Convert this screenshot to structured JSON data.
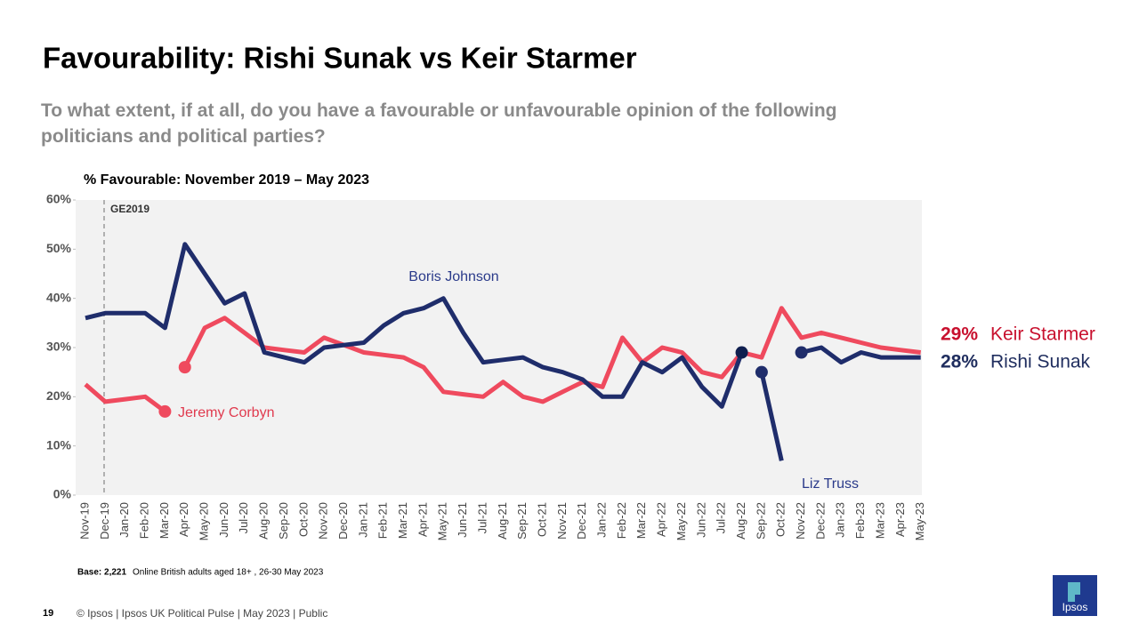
{
  "chart_data": {
    "type": "line",
    "title": "Favourability: Rishi Sunak vs Keir Starmer",
    "subtitle": "To what extent, if at all, do you have a favourable or unfavourable opinion of the following politicians and political parties?",
    "chart_title": "% Favourable: November 2019 – May 2023",
    "annotation": "GE2019",
    "categories": [
      "Nov-19",
      "Dec-19",
      "Jan-20",
      "Feb-20",
      "Mar-20",
      "Apr-20",
      "May-20",
      "Jun-20",
      "Jul-20",
      "Aug-20",
      "Sep-20",
      "Oct-20",
      "Nov-20",
      "Dec-20",
      "Jan-21",
      "Feb-21",
      "Mar-21",
      "Apr-21",
      "May-21",
      "Jun-21",
      "Jul-21",
      "Aug-21",
      "Sep-21",
      "Oct-21",
      "Nov-21",
      "Dec-21",
      "Jan-22",
      "Feb-22",
      "Mar-22",
      "Apr-22",
      "May-22",
      "Jun-22",
      "Jul-22",
      "Aug-22",
      "Sep-22",
      "Oct-22",
      "Nov-22",
      "Dec-22",
      "Jan-23",
      "Feb-23",
      "Mar-23",
      "Apr-23",
      "May-23"
    ],
    "series": [
      {
        "name": "Jeremy Corbyn",
        "color": "#ef4a5e",
        "label_color": "#e03a4e",
        "values": [
          22.5,
          19,
          19.5,
          20,
          17,
          null,
          null,
          null,
          null,
          null,
          null,
          null,
          null,
          null,
          null,
          null,
          null,
          null,
          null,
          null,
          null,
          null,
          null,
          null,
          null,
          null,
          null,
          null,
          null,
          null,
          null,
          null,
          null,
          null,
          null,
          null,
          null,
          null,
          null,
          null,
          null,
          null,
          null
        ]
      },
      {
        "name": "Keir Starmer",
        "color": "#ef4a5e",
        "label_color": "#c8102e",
        "values": [
          null,
          null,
          null,
          null,
          null,
          26,
          34,
          36,
          33,
          30,
          29.5,
          29,
          32,
          30.5,
          29,
          28.5,
          28,
          26,
          21,
          20.5,
          20,
          23,
          20,
          19,
          21,
          23,
          22,
          32,
          27,
          30,
          29,
          25,
          24,
          29,
          28,
          38,
          32,
          33,
          32,
          31,
          30,
          29.5,
          29
        ],
        "value_labels": [
          null,
          null,
          null,
          null,
          null,
          null,
          null,
          null,
          null,
          null,
          null,
          null,
          null,
          null,
          null,
          null,
          null,
          null,
          null,
          null,
          null,
          null,
          null,
          null,
          null,
          null,
          null,
          null,
          null,
          null,
          null,
          null,
          null,
          null,
          null,
          null,
          null,
          null,
          null,
          null,
          null,
          null,
          "29%"
        ]
      },
      {
        "name": "Boris Johnson",
        "color": "#1f2d6b",
        "label_color": "#2a3a8a",
        "values": [
          36,
          37,
          37,
          37,
          34,
          51,
          45,
          39,
          41,
          29,
          28,
          27,
          30,
          30.5,
          31,
          34.5,
          37,
          38,
          40,
          33,
          27,
          27.5,
          28,
          26,
          25,
          23.5,
          20,
          20,
          27,
          25,
          28,
          22,
          18,
          29,
          null,
          null,
          null,
          null,
          null,
          null,
          null,
          null,
          null
        ]
      },
      {
        "name": "Liz Truss",
        "color": "#1f2d6b",
        "label_color": "#2a3a8a",
        "values": [
          null,
          null,
          null,
          null,
          null,
          null,
          null,
          null,
          null,
          null,
          null,
          null,
          null,
          null,
          null,
          null,
          null,
          null,
          null,
          null,
          null,
          null,
          null,
          null,
          null,
          null,
          null,
          null,
          null,
          null,
          null,
          null,
          null,
          null,
          25,
          7,
          null,
          null,
          null,
          null,
          null,
          null,
          null
        ]
      },
      {
        "name": "Rishi Sunak",
        "color": "#1f2d6b",
        "label_color": "#1f2d5e",
        "values": [
          null,
          null,
          null,
          null,
          null,
          null,
          null,
          null,
          null,
          null,
          null,
          null,
          null,
          null,
          null,
          null,
          null,
          null,
          null,
          null,
          null,
          null,
          null,
          null,
          null,
          null,
          null,
          null,
          null,
          null,
          null,
          null,
          null,
          null,
          null,
          null,
          29,
          30,
          27,
          29,
          28,
          28,
          28
        ],
        "value_labels": [
          null,
          null,
          null,
          null,
          null,
          null,
          null,
          null,
          null,
          null,
          null,
          null,
          null,
          null,
          null,
          null,
          null,
          null,
          null,
          null,
          null,
          null,
          null,
          null,
          null,
          null,
          null,
          null,
          null,
          null,
          null,
          null,
          null,
          null,
          null,
          null,
          null,
          null,
          null,
          null,
          null,
          null,
          "28%"
        ]
      }
    ],
    "ylim": [
      0,
      60
    ],
    "yticks": [
      {
        "value": 0,
        "label": "0%"
      },
      {
        "value": 10,
        "label": "10%"
      },
      {
        "value": 20,
        "label": "20%"
      },
      {
        "value": 30,
        "label": "30%"
      },
      {
        "value": 40,
        "label": "40%"
      },
      {
        "value": 50,
        "label": "50%"
      },
      {
        "value": 60,
        "label": "60%"
      }
    ],
    "base_label": "Base: 2,221",
    "base_text": "Online British adults aged 18+ , 26-30 May 2023"
  },
  "footer": {
    "page": "19",
    "text": "© Ipsos | Ipsos UK Political Pulse | May 2023 | Public",
    "logo": "Ipsos"
  }
}
